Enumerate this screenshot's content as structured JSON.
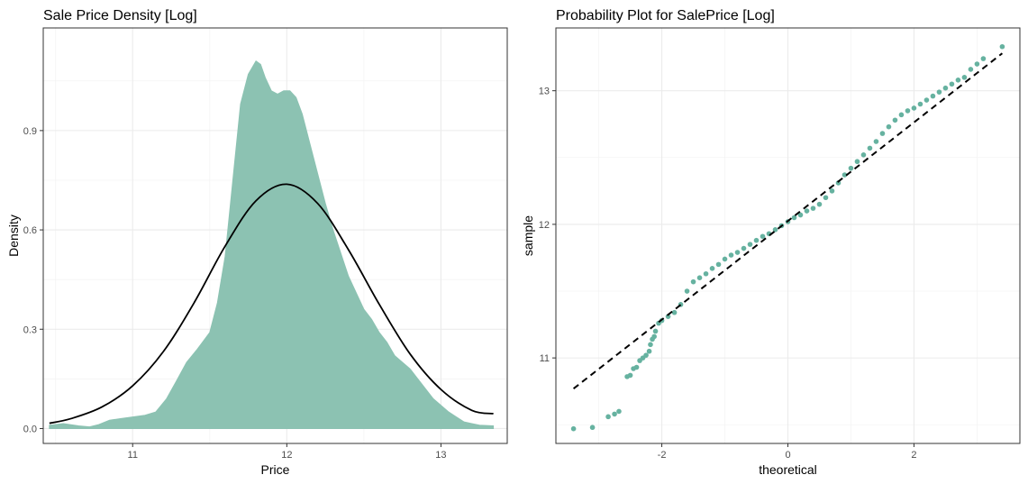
{
  "colors": {
    "fill": "#8cc2b2",
    "point": "#66b2a0",
    "line": "#000000"
  },
  "chart_data": [
    {
      "type": "area",
      "title": "Sale Price Density [Log]",
      "xlabel": "Price",
      "ylabel": "Density",
      "xlim": [
        10.42,
        13.43
      ],
      "ylim": [
        -0.045,
        1.21
      ],
      "xticks": [
        11,
        12,
        13
      ],
      "xtick_labels": [
        "11",
        "12",
        "13"
      ],
      "yticks": [
        0,
        0.3,
        0.6,
        0.9
      ],
      "ytick_labels": [
        "0.0",
        "0.3",
        "0.6",
        "0.9"
      ],
      "grid": true,
      "legend": "none",
      "series": [
        {
          "kind": "density-area",
          "x": [
            10.46,
            10.55,
            10.65,
            10.72,
            10.78,
            10.85,
            10.92,
            11.0,
            11.08,
            11.15,
            11.22,
            11.28,
            11.35,
            11.42,
            11.5,
            11.55,
            11.6,
            11.65,
            11.7,
            11.75,
            11.8,
            11.83,
            11.86,
            11.9,
            11.94,
            11.98,
            12.02,
            12.06,
            12.1,
            12.15,
            12.2,
            12.25,
            12.3,
            12.35,
            12.4,
            12.45,
            12.5,
            12.55,
            12.6,
            12.65,
            12.7,
            12.75,
            12.8,
            12.85,
            12.9,
            12.95,
            13.0,
            13.05,
            13.1,
            13.15,
            13.2,
            13.25,
            13.34
          ],
          "y": [
            0.01,
            0.015,
            0.008,
            0.005,
            0.012,
            0.025,
            0.03,
            0.035,
            0.04,
            0.05,
            0.09,
            0.14,
            0.2,
            0.24,
            0.29,
            0.38,
            0.52,
            0.75,
            0.98,
            1.07,
            1.11,
            1.1,
            1.06,
            1.02,
            1.01,
            1.02,
            1.02,
            1.0,
            0.95,
            0.86,
            0.77,
            0.68,
            0.6,
            0.53,
            0.46,
            0.41,
            0.36,
            0.33,
            0.29,
            0.26,
            0.22,
            0.2,
            0.18,
            0.15,
            0.12,
            0.09,
            0.07,
            0.05,
            0.035,
            0.02,
            0.015,
            0.01,
            0.008
          ]
        },
        {
          "kind": "normal-curve",
          "x": [
            10.46,
            10.6,
            10.8,
            11.0,
            11.2,
            11.4,
            11.6,
            11.8,
            12.0,
            12.2,
            12.4,
            12.6,
            12.8,
            13.0,
            13.2,
            13.34
          ],
          "y": [
            0.016,
            0.03,
            0.065,
            0.129,
            0.233,
            0.381,
            0.551,
            0.688,
            0.738,
            0.68,
            0.54,
            0.375,
            0.225,
            0.118,
            0.055,
            0.045
          ]
        }
      ]
    },
    {
      "type": "scatter",
      "title": "Probability Plot for SalePrice [Log]",
      "xlabel": "theoretical",
      "ylabel": "sample",
      "xlim": [
        -3.68,
        3.68
      ],
      "ylim": [
        10.36,
        13.47
      ],
      "xticks": [
        -2,
        0,
        2
      ],
      "xtick_labels": [
        "-2",
        "0",
        "2"
      ],
      "yticks": [
        11,
        12,
        13
      ],
      "ytick_labels": [
        "11",
        "12",
        "13"
      ],
      "grid": true,
      "legend": "none",
      "reference_line": {
        "x": [
          -3.4,
          3.4
        ],
        "y": [
          10.77,
          13.28
        ],
        "style": "dashed"
      },
      "series": [
        {
          "kind": "points",
          "x": [
            -3.4,
            -3.1,
            -2.85,
            -2.75,
            -2.68,
            -2.55,
            -2.5,
            -2.45,
            -2.4,
            -2.35,
            -2.3,
            -2.25,
            -2.2,
            -2.18,
            -2.15,
            -2.12,
            -2.1,
            -2.05,
            -2.0,
            -1.9,
            -1.8,
            -1.7,
            -1.6,
            -1.5,
            -1.4,
            -1.3,
            -1.2,
            -1.1,
            -1.0,
            -0.9,
            -0.8,
            -0.7,
            -0.6,
            -0.5,
            -0.4,
            -0.3,
            -0.2,
            -0.1,
            0.0,
            0.1,
            0.2,
            0.3,
            0.4,
            0.5,
            0.6,
            0.7,
            0.8,
            0.9,
            1.0,
            1.1,
            1.2,
            1.3,
            1.4,
            1.5,
            1.6,
            1.7,
            1.8,
            1.9,
            2.0,
            2.1,
            2.2,
            2.3,
            2.4,
            2.5,
            2.6,
            2.7,
            2.8,
            2.9,
            3.0,
            3.1,
            3.4
          ],
          "y": [
            10.47,
            10.48,
            10.56,
            10.58,
            10.6,
            10.86,
            10.87,
            10.92,
            10.93,
            10.98,
            11.0,
            11.02,
            11.05,
            11.1,
            11.14,
            11.16,
            11.2,
            11.26,
            11.28,
            11.31,
            11.34,
            11.4,
            11.5,
            11.57,
            11.6,
            11.63,
            11.67,
            11.7,
            11.74,
            11.77,
            11.79,
            11.82,
            11.85,
            11.88,
            11.91,
            11.93,
            11.96,
            11.99,
            12.02,
            12.05,
            12.07,
            12.1,
            12.12,
            12.15,
            12.2,
            12.25,
            12.31,
            12.37,
            12.42,
            12.47,
            12.52,
            12.57,
            12.62,
            12.68,
            12.73,
            12.78,
            12.82,
            12.85,
            12.87,
            12.9,
            12.93,
            12.96,
            12.99,
            13.02,
            13.05,
            13.08,
            13.1,
            13.16,
            13.2,
            13.24,
            13.33
          ]
        }
      ]
    }
  ]
}
